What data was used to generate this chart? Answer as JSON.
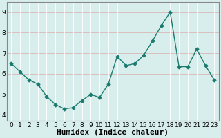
{
  "x": [
    0,
    1,
    2,
    3,
    4,
    5,
    6,
    7,
    8,
    9,
    10,
    11,
    12,
    13,
    14,
    15,
    16,
    17,
    18,
    19,
    20,
    21,
    22,
    23
  ],
  "y": [
    6.5,
    6.1,
    5.7,
    5.5,
    4.9,
    4.5,
    4.3,
    4.35,
    4.7,
    5.0,
    4.85,
    5.5,
    6.85,
    6.4,
    6.5,
    6.9,
    7.6,
    8.35,
    9.0,
    6.35,
    6.35,
    7.2,
    6.4,
    5.7
  ],
  "line_color": "#1a7a6e",
  "marker": "D",
  "marker_size": 2.5,
  "bg_color": "#d8eeec",
  "grid_white_color": "#ffffff",
  "grid_pink_color": "#d8b8b8",
  "xlabel": "Humidex (Indice chaleur)",
  "ylim": [
    3.7,
    9.5
  ],
  "xlim": [
    -0.5,
    23.5
  ],
  "yticks": [
    4,
    5,
    6,
    7,
    8,
    9
  ],
  "xticks": [
    0,
    1,
    2,
    3,
    4,
    5,
    6,
    7,
    8,
    9,
    10,
    11,
    12,
    13,
    14,
    15,
    16,
    17,
    18,
    19,
    20,
    21,
    22,
    23
  ],
  "tick_fontsize": 6.5,
  "xlabel_fontsize": 8
}
